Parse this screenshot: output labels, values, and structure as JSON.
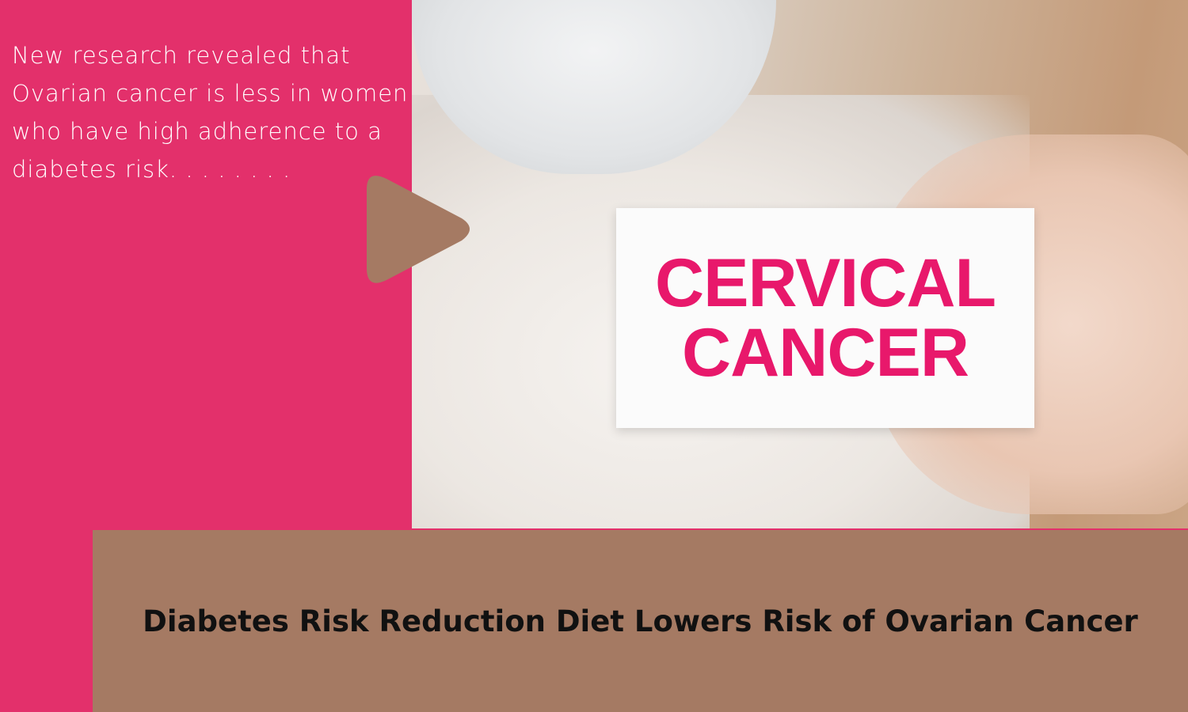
{
  "tagline": "New research revealed that Ovarian cancer is less in women who have high adherence to a diabetes risk. . . . . . . .",
  "photo": {
    "card_line1": "CERVICAL",
    "card_line2": "CANCER"
  },
  "headline": "Diabetes Risk Reduction Diet Lowers Risk of Ovarian Cancer",
  "colors": {
    "pink": "#e3306b",
    "brown": "#a57a63",
    "card_text": "#e8186b"
  },
  "icons": [
    "play-icon"
  ]
}
